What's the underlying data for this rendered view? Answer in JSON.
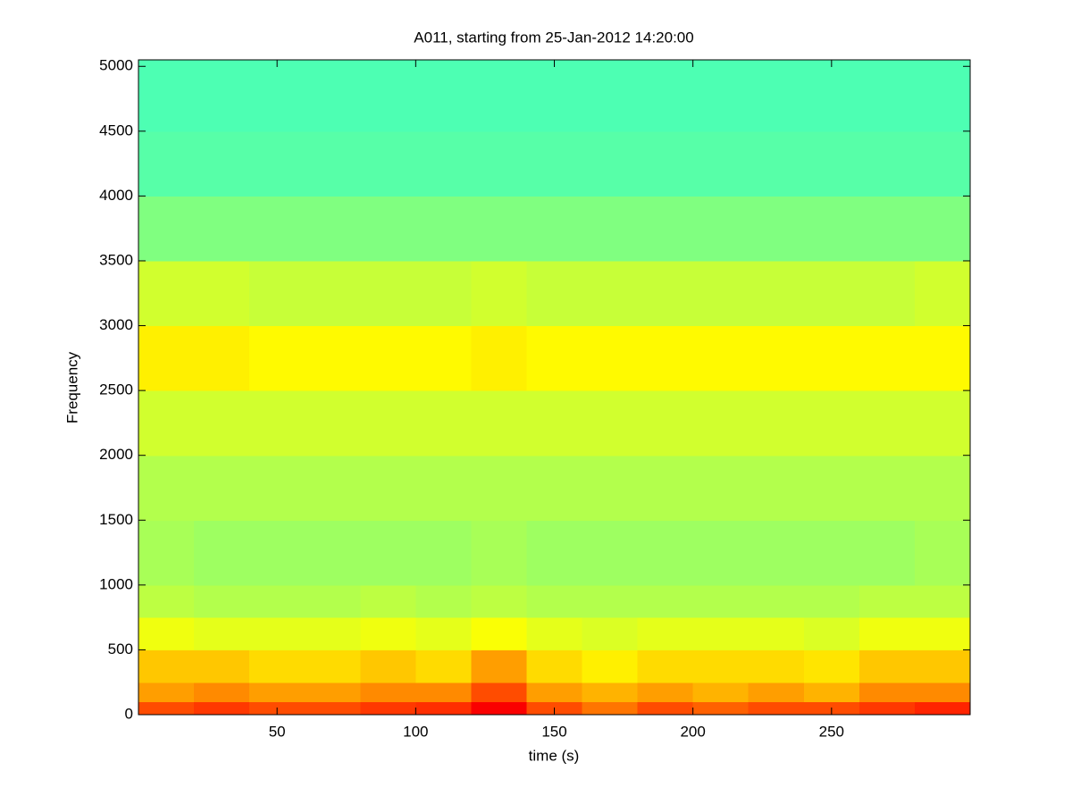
{
  "chart_data": {
    "type": "spectrogram",
    "title": "A011, starting from 25-Jan-2012 14:20:00",
    "x_label": "time (s)",
    "y_label": "Frequency",
    "colormap": "jet",
    "xbins": [
      0,
      20,
      40,
      60,
      80,
      100,
      120,
      140,
      160,
      180,
      200,
      220,
      240,
      260,
      280,
      300
    ],
    "ybins": [
      0,
      100,
      250,
      500,
      750,
      1000,
      1500,
      2000,
      2500,
      3000,
      3500,
      4000,
      4500,
      5050
    ],
    "z": [
      [
        0.8,
        0.82,
        0.8,
        0.8,
        0.82,
        0.83,
        0.88,
        0.8,
        0.76,
        0.8,
        0.78,
        0.8,
        0.8,
        0.82,
        0.84
      ],
      [
        0.72,
        0.74,
        0.72,
        0.72,
        0.74,
        0.74,
        0.8,
        0.72,
        0.7,
        0.72,
        0.7,
        0.72,
        0.7,
        0.74,
        0.74
      ],
      [
        0.68,
        0.68,
        0.66,
        0.66,
        0.68,
        0.66,
        0.72,
        0.66,
        0.64,
        0.66,
        0.66,
        0.66,
        0.65,
        0.68,
        0.68
      ],
      [
        0.61,
        0.6,
        0.6,
        0.6,
        0.61,
        0.6,
        0.62,
        0.6,
        0.59,
        0.6,
        0.6,
        0.6,
        0.59,
        0.61,
        0.61
      ],
      [
        0.56,
        0.55,
        0.55,
        0.55,
        0.56,
        0.55,
        0.56,
        0.55,
        0.55,
        0.55,
        0.55,
        0.55,
        0.55,
        0.56,
        0.56
      ],
      [
        0.54,
        0.53,
        0.53,
        0.53,
        0.53,
        0.53,
        0.54,
        0.53,
        0.53,
        0.53,
        0.53,
        0.53,
        0.53,
        0.53,
        0.54
      ],
      [
        0.55,
        0.55,
        0.55,
        0.55,
        0.55,
        0.55,
        0.55,
        0.55,
        0.55,
        0.55,
        0.55,
        0.55,
        0.55,
        0.55,
        0.55
      ],
      [
        0.58,
        0.58,
        0.58,
        0.58,
        0.58,
        0.58,
        0.58,
        0.58,
        0.58,
        0.58,
        0.58,
        0.58,
        0.58,
        0.58,
        0.58
      ],
      [
        0.64,
        0.64,
        0.63,
        0.63,
        0.63,
        0.63,
        0.64,
        0.63,
        0.63,
        0.63,
        0.63,
        0.63,
        0.63,
        0.63,
        0.63
      ],
      [
        0.58,
        0.58,
        0.57,
        0.57,
        0.57,
        0.57,
        0.58,
        0.57,
        0.57,
        0.57,
        0.57,
        0.57,
        0.57,
        0.57,
        0.58
      ],
      [
        0.5,
        0.5,
        0.5,
        0.5,
        0.5,
        0.5,
        0.5,
        0.5,
        0.5,
        0.5,
        0.5,
        0.5,
        0.5,
        0.5,
        0.5
      ],
      [
        0.46,
        0.46,
        0.46,
        0.46,
        0.46,
        0.46,
        0.46,
        0.46,
        0.46,
        0.46,
        0.46,
        0.46,
        0.46,
        0.46,
        0.46
      ],
      [
        0.45,
        0.45,
        0.45,
        0.45,
        0.45,
        0.45,
        0.45,
        0.45,
        0.45,
        0.45,
        0.45,
        0.45,
        0.45,
        0.45,
        0.45
      ]
    ],
    "xlim": [
      0,
      300
    ],
    "ylim": [
      0,
      5050
    ],
    "xticks": [
      50,
      100,
      150,
      200,
      250
    ],
    "yticks": [
      0,
      500,
      1000,
      1500,
      2000,
      2500,
      3000,
      3500,
      4000,
      4500,
      5000
    ]
  }
}
